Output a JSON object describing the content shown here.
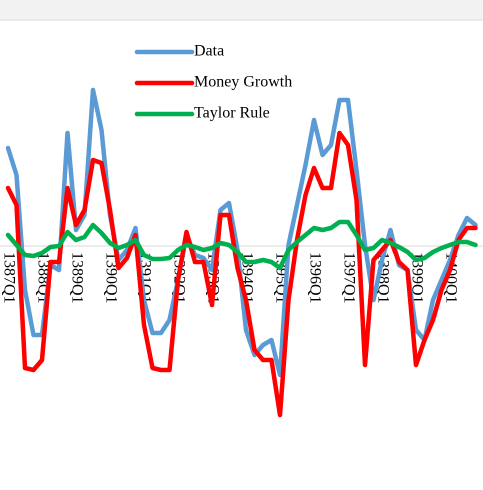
{
  "chart_data": {
    "type": "line",
    "categories": [
      "1387Q1",
      null,
      null,
      null,
      "1388Q1",
      null,
      null,
      null,
      "1389Q1",
      null,
      null,
      null,
      "1390Q1",
      null,
      null,
      null,
      "1391Q1",
      null,
      null,
      null,
      "1392Q1",
      null,
      null,
      null,
      "1393Q1",
      null,
      null,
      null,
      "1394Q1",
      null,
      null,
      null,
      "1395Q1",
      null,
      null,
      null,
      "1396Q1",
      null,
      null,
      null,
      "1397Q1",
      null,
      null,
      null,
      "1398Q1",
      null,
      null,
      null,
      "1399Q1",
      null,
      null,
      null,
      "1400Q1",
      null,
      null,
      null
    ],
    "series": [
      {
        "name": "Data",
        "color": "#5b9bd5",
        "values": [
          9.8,
          7.1,
          -4.4,
          -8.9,
          -8.9,
          -1.9,
          -2.4,
          11.3,
          1.6,
          3.1,
          15.6,
          11.6,
          3.1,
          -1.4,
          -0.4,
          1.8,
          -5.4,
          -8.7,
          -8.7,
          -7.4,
          -3.4,
          1.1,
          -0.9,
          -1.2,
          -2.4,
          3.6,
          4.3,
          -0.4,
          -8.4,
          -10.9,
          -9.9,
          -9.4,
          -12.9,
          0.1,
          4.1,
          8.1,
          12.6,
          9.1,
          10.1,
          14.6,
          14.6,
          7.6,
          0.1,
          -5.4,
          -1.4,
          1.6,
          -1.9,
          -2.4,
          -8.4,
          -9.4,
          -5.4,
          -3.4,
          -1.4,
          1.1,
          2.8,
          2.1
        ]
      },
      {
        "name": "Money Growth",
        "color": "#ff0000",
        "values": [
          5.8,
          4.1,
          -12.2,
          -12.4,
          -11.4,
          -1.6,
          -1.6,
          5.8,
          2.1,
          3.6,
          8.6,
          8.3,
          3.6,
          -2.2,
          -1.2,
          1.1,
          -7.9,
          -12.2,
          -12.4,
          -12.4,
          -3.4,
          1.4,
          -1.6,
          -1.6,
          -5.9,
          3.1,
          3.1,
          -2.2,
          -5.4,
          -10.4,
          -11.4,
          -11.4,
          -16.9,
          -5.4,
          0.6,
          5.1,
          7.8,
          5.8,
          5.8,
          11.3,
          10.1,
          4.6,
          -11.9,
          -1.4,
          -0.4,
          0.6,
          -1.6,
          -2.4,
          -11.9,
          -9.4,
          -7.4,
          -4.4,
          -2.4,
          0.6,
          1.8,
          1.8
        ]
      },
      {
        "name": "Taylor Rule",
        "color": "#00b050",
        "values": [
          1.1,
          0.1,
          -0.9,
          -1.0,
          -0.7,
          -0.1,
          0,
          1.4,
          0.6,
          0.9,
          2.1,
          1.3,
          0.3,
          -0.2,
          0.1,
          0.6,
          -0.9,
          -1.3,
          -1.3,
          -1.2,
          -0.4,
          0.1,
          -0.1,
          -0.4,
          -0.2,
          0.3,
          0.1,
          -0.6,
          -1.6,
          -1.6,
          -1.4,
          -1.6,
          -2.2,
          -0.4,
          0.4,
          1.1,
          1.8,
          1.6,
          1.8,
          2.4,
          2.4,
          1.1,
          -0.4,
          -0.2,
          0.6,
          0.3,
          -0.1,
          -0.6,
          -1.4,
          -1.2,
          -0.6,
          -0.2,
          0.1,
          0.4,
          0.4,
          0.1
        ]
      }
    ],
    "ylim": [
      -20,
      22
    ]
  }
}
